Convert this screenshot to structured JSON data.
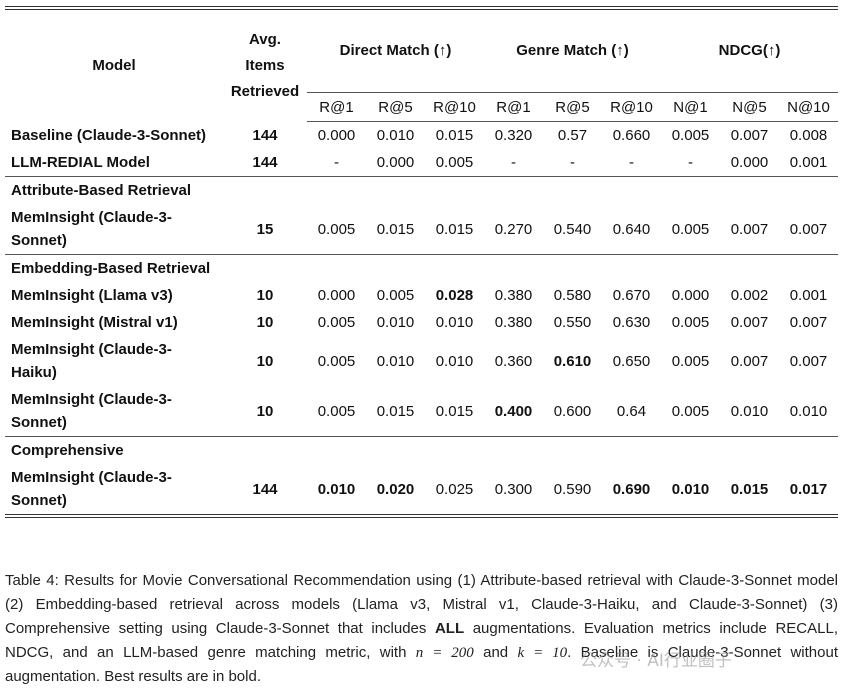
{
  "table": {
    "header": [
      "Model",
      "Avg.\nItems\nRetrieved",
      "Direct Match (↑)",
      "Genre Match (↑)",
      "NDCG(↑)"
    ],
    "subheader": [
      "R@1",
      "R@5",
      "R@10",
      "R@1",
      "R@5",
      "R@10",
      "N@1",
      "N@5",
      "N@10"
    ],
    "rows": [
      {
        "cells": [
          "Baseline (Claude-3-Sonnet)",
          "144",
          "0.000",
          "0.010",
          "0.015",
          "0.320",
          "0.57",
          "0.660",
          "0.005",
          "0.007",
          "0.008"
        ],
        "bold": [
          0,
          1
        ]
      },
      {
        "cells": [
          "LLM-REDIAL Model",
          "144",
          "-",
          "0.000",
          "0.005",
          "-",
          "-",
          "-",
          "-",
          "0.000",
          "0.001"
        ],
        "bold": [
          0,
          1
        ]
      },
      {
        "section": "Attribute-Based Retrieval"
      },
      {
        "cells": [
          "MemInsight (Claude-3-Sonnet)",
          "15",
          "0.005",
          "0.015",
          "0.015",
          "0.270",
          "0.540",
          "0.640",
          "0.005",
          "0.007",
          "0.007"
        ],
        "bold": [
          0,
          1
        ]
      },
      {
        "section": "Embedding-Based Retrieval"
      },
      {
        "cells": [
          "MemInsight (Llama v3)",
          "10",
          "0.000",
          "0.005",
          "0.028",
          "0.380",
          "0.580",
          "0.670",
          "0.000",
          "0.002",
          "0.001"
        ],
        "bold": [
          0,
          1,
          4
        ]
      },
      {
        "cells": [
          "MemInsight (Mistral v1)",
          "10",
          "0.005",
          "0.010",
          "0.010",
          "0.380",
          "0.550",
          "0.630",
          "0.005",
          "0.007",
          "0.007"
        ],
        "bold": [
          0,
          1
        ]
      },
      {
        "cells": [
          "MemInsight (Claude-3-Haiku)",
          "10",
          "0.005",
          "0.010",
          "0.010",
          "0.360",
          "0.610",
          "0.650",
          "0.005",
          "0.007",
          "0.007"
        ],
        "bold": [
          0,
          1,
          6
        ]
      },
      {
        "cells": [
          "MemInsight (Claude-3-Sonnet)",
          "10",
          "0.005",
          "0.015",
          "0.015",
          "0.400",
          "0.600",
          "0.64",
          "0.005",
          "0.010",
          "0.010"
        ],
        "bold": [
          0,
          1,
          5
        ]
      },
      {
        "section": "Comprehensive"
      },
      {
        "cells": [
          "MemInsight (Claude-3-Sonnet)",
          "144",
          "0.010",
          "0.020",
          "0.025",
          "0.300",
          "0.590",
          "0.690",
          "0.010",
          "0.015",
          "0.017"
        ],
        "bold": [
          0,
          1,
          2,
          3,
          7,
          8,
          9,
          10
        ]
      }
    ]
  },
  "caption": [
    "Table 4:  Results for Movie Conversational Recommendation using (1) Attribute-based retrieval with Claude-3-Sonnet model (2) Embedding-based retrieval across models (Llama v3, Mistral v1, Claude-3-Haiku, and Claude-3-Sonnet) (3) Comprehensive setting using Claude-3-Sonnet that includes ",
    "ALL",
    " augmentations. Evaluation metrics include RECALL, NDCG, and an LLM-based genre matching metric, with ",
    "n = 200",
    " and ",
    "k = 10",
    ". Baseline is Claude-3-Sonnet without augmentation. Best results are in bold."
  ],
  "watermark": "公众号 · AI行业圈子"
}
